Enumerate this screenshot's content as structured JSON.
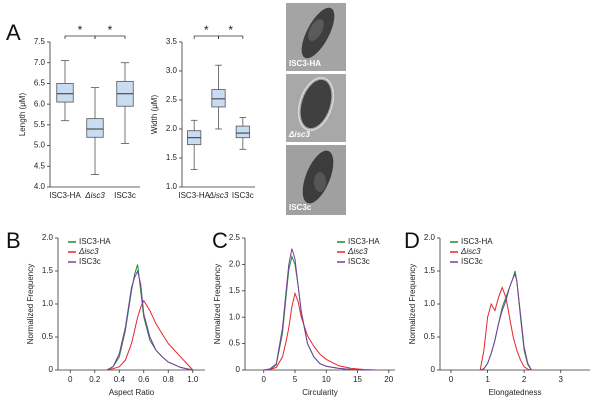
{
  "panel_labels": [
    "A",
    "B",
    "C",
    "D"
  ],
  "micrographs": [
    "ISC3-HA",
    "Δisc3",
    "ISC3c"
  ],
  "chart_data": [
    {
      "type": "box",
      "ylabel": "Length (μM)",
      "categories": [
        "ISC3-HA",
        "Δisc3",
        "ISC3c"
      ],
      "color": "#c9dcf2",
      "boxes": [
        {
          "whislo": 5.6,
          "q1": 6.05,
          "med": 6.25,
          "q3": 6.5,
          "whishi": 7.05
        },
        {
          "whislo": 4.3,
          "q1": 5.2,
          "med": 5.4,
          "q3": 5.65,
          "whishi": 6.4
        },
        {
          "whislo": 5.05,
          "q1": 5.95,
          "med": 6.25,
          "q3": 6.55,
          "whishi": 7.0
        }
      ],
      "annotations": [
        "*",
        "*"
      ],
      "ylim": [
        4.0,
        7.5
      ],
      "yticks": [
        {
          "value": 4,
          "label": "4.0"
        },
        4.5,
        {
          "value": 5,
          "label": "5.0"
        },
        5.5,
        {
          "value": 6,
          "label": "6.0"
        },
        6.5,
        {
          "value": 7,
          "label": "7.0"
        },
        7.5
      ]
    },
    {
      "type": "box",
      "ylabel": "Width (μM)",
      "categories": [
        "ISC3-HA",
        "Δisc3",
        "ISC3c"
      ],
      "color": "#c9dcf2",
      "boxes": [
        {
          "whislo": 1.3,
          "q1": 1.73,
          "med": 1.85,
          "q3": 1.97,
          "whishi": 2.15
        },
        {
          "whislo": 2.0,
          "q1": 2.38,
          "med": 2.52,
          "q3": 2.68,
          "whishi": 3.1
        },
        {
          "whislo": 1.65,
          "q1": 1.85,
          "med": 1.93,
          "q3": 2.05,
          "whishi": 2.2
        }
      ],
      "annotations": [
        "*",
        "*"
      ],
      "ylim": [
        1.0,
        3.5
      ],
      "yticks": [
        {
          "value": 1,
          "label": "1.0"
        },
        1.5,
        {
          "value": 2,
          "label": "2.0"
        },
        2.5,
        {
          "value": 3,
          "label": "3.0"
        },
        3.5
      ]
    },
    {
      "type": "line",
      "xlabel": "Aspect Ratio",
      "ylabel": "Normalized Frequency",
      "legend": "upper left",
      "x": [
        0.3,
        0.35,
        0.4,
        0.45,
        0.5,
        0.525,
        0.55,
        0.575,
        0.6,
        0.65,
        0.7,
        0.75,
        0.8,
        0.85,
        0.9,
        0.95,
        1.0
      ],
      "series": [
        {
          "name": "ISC3-HA",
          "color": "#1f8a3a",
          "values": [
            0,
            0.05,
            0.2,
            0.6,
            1.2,
            1.45,
            1.6,
            1.2,
            0.8,
            0.45,
            0.3,
            0.2,
            0.12,
            0.08,
            0.04,
            0.02,
            0
          ]
        },
        {
          "name": "Δisc3",
          "color": "#e8242a",
          "values": [
            0,
            0.02,
            0.05,
            0.15,
            0.4,
            0.6,
            0.8,
            0.95,
            1.05,
            0.9,
            0.7,
            0.55,
            0.4,
            0.3,
            0.2,
            0.1,
            0
          ]
        },
        {
          "name": "ISC3c",
          "color": "#7a3ea0",
          "values": [
            0,
            0.05,
            0.25,
            0.65,
            1.25,
            1.4,
            1.5,
            1.3,
            0.85,
            0.5,
            0.3,
            0.2,
            0.12,
            0.08,
            0.04,
            0.02,
            0
          ]
        }
      ],
      "xlim": [
        -0.1,
        1.1
      ],
      "xticks": [
        0,
        0.2,
        0.4,
        0.6,
        0.8,
        {
          "value": 1,
          "label": "1.0"
        }
      ],
      "ylim": [
        0,
        2.0
      ],
      "yticks": [
        0,
        0.5,
        {
          "value": 1,
          "label": "1.0"
        },
        1.5,
        {
          "value": 2,
          "label": "2.0"
        }
      ]
    },
    {
      "type": "line",
      "xlabel": "Circularity",
      "ylabel": "Normalized Frequency",
      "legend": "upper right",
      "x": [
        0,
        1,
        2,
        3,
        3.5,
        4,
        4.5,
        5,
        5.5,
        6,
        7,
        8,
        9,
        10,
        12,
        14,
        16,
        18
      ],
      "series": [
        {
          "name": "ISC3-HA",
          "color": "#1f8a3a",
          "values": [
            0,
            0.01,
            0.1,
            0.7,
            1.3,
            1.9,
            2.15,
            2.0,
            1.6,
            1.1,
            0.5,
            0.25,
            0.12,
            0.07,
            0.03,
            0.01,
            0,
            0
          ]
        },
        {
          "name": "Δisc3",
          "color": "#e8242a",
          "values": [
            0,
            0.01,
            0.05,
            0.25,
            0.5,
            0.8,
            1.2,
            1.45,
            1.3,
            1.0,
            0.65,
            0.45,
            0.3,
            0.2,
            0.08,
            0.03,
            0.01,
            0
          ]
        },
        {
          "name": "ISC3c",
          "color": "#7a3ea0",
          "values": [
            0,
            0.02,
            0.12,
            0.8,
            1.4,
            2.0,
            2.3,
            2.1,
            1.6,
            1.1,
            0.5,
            0.25,
            0.12,
            0.07,
            0.03,
            0.01,
            0,
            0
          ]
        }
      ],
      "xlim": [
        -3,
        21
      ],
      "xticks": [
        0,
        5,
        10,
        15,
        20
      ],
      "ylim": [
        0,
        2.5
      ],
      "yticks": [
        0,
        0.5,
        {
          "value": 1,
          "label": "1.0"
        },
        1.5,
        {
          "value": 2,
          "label": "2.0"
        },
        2.5
      ]
    },
    {
      "type": "line",
      "xlabel": "Elongatedness",
      "ylabel": "Normalized Frequency",
      "legend": "upper left",
      "x": [
        0.8,
        0.9,
        1.0,
        1.1,
        1.2,
        1.3,
        1.4,
        1.5,
        1.6,
        1.7,
        1.75,
        1.8,
        1.9,
        2.0,
        2.1,
        2.2
      ],
      "series": [
        {
          "name": "ISC3-HA",
          "color": "#1f8a3a",
          "values": [
            0,
            0.02,
            0.1,
            0.25,
            0.45,
            0.7,
            0.95,
            1.1,
            1.25,
            1.4,
            1.5,
            1.35,
            0.8,
            0.3,
            0.08,
            0
          ]
        },
        {
          "name": "Δisc3",
          "color": "#e8242a",
          "values": [
            0,
            0.3,
            0.8,
            1.0,
            0.9,
            1.1,
            1.25,
            1.1,
            0.8,
            0.5,
            0.4,
            0.3,
            0.15,
            0.05,
            0.01,
            0
          ]
        },
        {
          "name": "ISC3c",
          "color": "#7a3ea0",
          "values": [
            0,
            0.02,
            0.1,
            0.25,
            0.45,
            0.7,
            0.9,
            1.05,
            1.25,
            1.4,
            1.45,
            1.35,
            0.85,
            0.35,
            0.1,
            0
          ]
        }
      ],
      "xlim": [
        -0.3,
        3.8
      ],
      "xticks": [
        0,
        1,
        2,
        3
      ],
      "ylim": [
        0,
        2.0
      ],
      "yticks": [
        0,
        0.5,
        {
          "value": 1,
          "label": "1.0"
        },
        1.5,
        {
          "value": 2,
          "label": "2.0"
        }
      ]
    }
  ]
}
